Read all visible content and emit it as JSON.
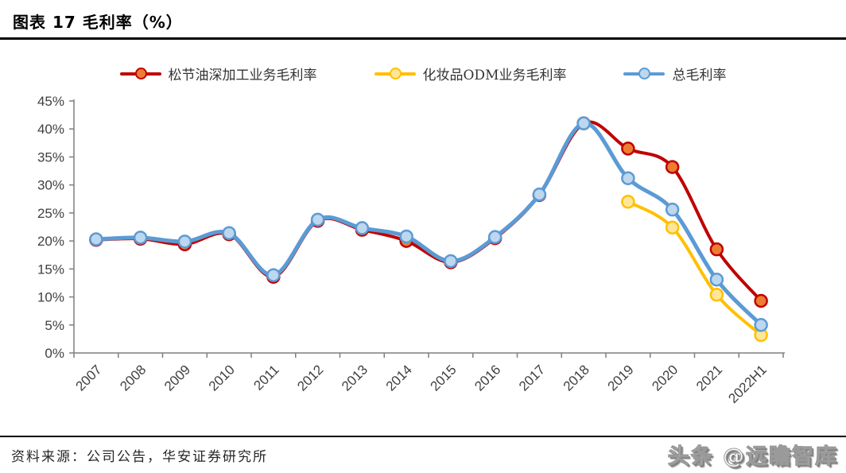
{
  "header": {
    "title": "图表 17  毛利率（%）"
  },
  "footer": {
    "source": "资料来源：公司公告，华安证券研究所"
  },
  "watermark": {
    "text": "头条 @远瞻智库"
  },
  "colors": {
    "series_red": "#C00000",
    "series_red_marker": "#ED7D31",
    "series_yellow": "#FFC000",
    "series_yellow_marker": "#FFE699",
    "series_blue": "#5B9BD5",
    "series_blue_marker": "#BDD7EE",
    "axis": "#7F7F7F",
    "tick_label": "#404040",
    "rule": "#000000"
  },
  "chart_data": {
    "type": "line",
    "title": "毛利率（%）",
    "categories": [
      "2007",
      "2008",
      "2009",
      "2010",
      "2011",
      "2012",
      "2013",
      "2014",
      "2015",
      "2016",
      "2017",
      "2018",
      "2019",
      "2020",
      "2021",
      "2022H1"
    ],
    "series": [
      {
        "name": "松节油深加工业务毛利率",
        "line_color": "#C00000",
        "marker_fill": "#ED7D31",
        "line_width": 4,
        "values": [
          20.2,
          20.4,
          19.4,
          21.2,
          13.6,
          23.6,
          22.0,
          20.0,
          16.2,
          20.5,
          28.2,
          41.0,
          36.5,
          33.2,
          18.5,
          9.3
        ]
      },
      {
        "name": "化妆品ODM业务毛利率",
        "line_color": "#FFC000",
        "marker_fill": "#FFE699",
        "line_width": 4,
        "values": [
          null,
          null,
          null,
          null,
          null,
          null,
          null,
          null,
          null,
          null,
          null,
          null,
          27.0,
          22.4,
          10.4,
          3.2
        ]
      },
      {
        "name": "总毛利率",
        "line_color": "#5B9BD5",
        "marker_fill": "#BDD7EE",
        "line_width": 5,
        "values": [
          20.3,
          20.6,
          19.9,
          21.4,
          13.9,
          23.8,
          22.3,
          20.8,
          16.4,
          20.7,
          28.3,
          41.0,
          31.2,
          25.6,
          13.1,
          5.0
        ]
      }
    ],
    "xlabel": "",
    "ylabel": "",
    "ylim": [
      0,
      45
    ],
    "ytick_step": 5,
    "ytick_suffix": "%",
    "grid": false,
    "legend_position": "top"
  }
}
